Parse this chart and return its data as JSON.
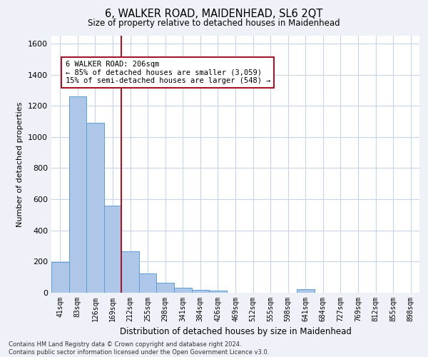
{
  "title": "6, WALKER ROAD, MAIDENHEAD, SL6 2QT",
  "subtitle": "Size of property relative to detached houses in Maidenhead",
  "xlabel": "Distribution of detached houses by size in Maidenhead",
  "ylabel": "Number of detached properties",
  "bar_labels": [
    "41sqm",
    "83sqm",
    "126sqm",
    "169sqm",
    "212sqm",
    "255sqm",
    "298sqm",
    "341sqm",
    "384sqm",
    "426sqm",
    "469sqm",
    "512sqm",
    "555sqm",
    "598sqm",
    "641sqm",
    "684sqm",
    "727sqm",
    "769sqm",
    "812sqm",
    "855sqm",
    "898sqm"
  ],
  "bar_values": [
    197,
    1262,
    1090,
    557,
    265,
    122,
    62,
    30,
    20,
    13,
    0,
    0,
    0,
    0,
    22,
    0,
    0,
    0,
    0,
    0,
    0
  ],
  "bar_color": "#aec6e8",
  "bar_edge_color": "#5a9fd4",
  "vline_x_index": 4,
  "vline_color": "#a0182a",
  "annotation_text": "6 WALKER ROAD: 206sqm\n← 85% of detached houses are smaller (3,059)\n15% of semi-detached houses are larger (548) →",
  "annotation_box_color": "white",
  "annotation_box_edge_color": "#a0182a",
  "ylim": [
    0,
    1650
  ],
  "yticks": [
    0,
    200,
    400,
    600,
    800,
    1000,
    1200,
    1400,
    1600
  ],
  "footer_line1": "Contains HM Land Registry data © Crown copyright and database right 2024.",
  "footer_line2": "Contains public sector information licensed under the Open Government Licence v3.0.",
  "bg_color": "#eef2f8",
  "plot_bg_color": "#ffffff",
  "grid_color": "#c8d4e8"
}
